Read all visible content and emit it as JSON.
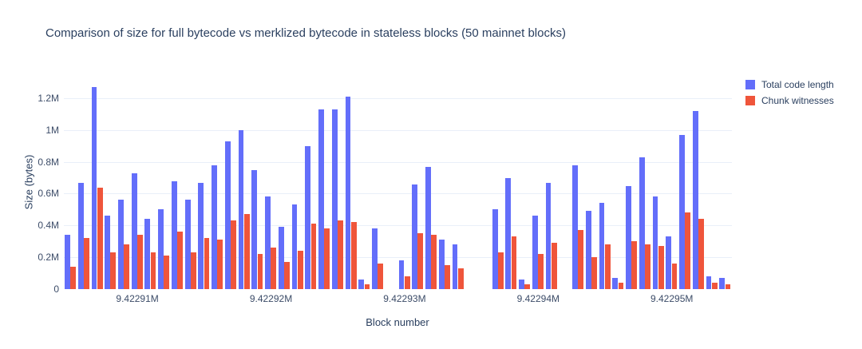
{
  "title": "Comparison of size for full bytecode vs merklized bytecode in stateless blocks (50 mainnet blocks)",
  "colors": {
    "series_blue": "#636EFA",
    "series_red": "#EF553B",
    "text": "#2a3f5f",
    "tick_text": "#3c4c68",
    "gridline": "#e9eff9",
    "background": "#ffffff"
  },
  "legend": {
    "items": [
      {
        "label": "Total code length",
        "color": "#636EFA"
      },
      {
        "label": "Chunk witnesses",
        "color": "#EF553B"
      }
    ]
  },
  "chart_data": {
    "type": "bar",
    "title": "Comparison of size for full bytecode vs merklized bytecode in stateless blocks (50 mainnet blocks)",
    "xlabel": "Block number",
    "ylabel": "Size (bytes)",
    "grid": true,
    "legend_position": "top-right",
    "ylim_millions": [
      0,
      1.34
    ],
    "y_ticks": [
      "0",
      "0.2M",
      "0.4M",
      "0.6M",
      "0.8M",
      "1M",
      "1.2M"
    ],
    "y_tick_values_millions": [
      0,
      0.2,
      0.4,
      0.6,
      0.8,
      1,
      1.2
    ],
    "x_ticks": [
      {
        "label": "9.42291M",
        "index": 5
      },
      {
        "label": "9.42292M",
        "index": 15
      },
      {
        "label": "9.42293M",
        "index": 25
      },
      {
        "label": "9.42294M",
        "index": 35
      },
      {
        "label": "9.42295M",
        "index": 45
      }
    ],
    "x": [
      9422905,
      9422906,
      9422907,
      9422908,
      9422909,
      9422910,
      9422911,
      9422912,
      9422913,
      9422914,
      9422915,
      9422916,
      9422917,
      9422918,
      9422919,
      9422920,
      9422921,
      9422922,
      9422923,
      9422924,
      9422925,
      9422926,
      9422927,
      9422928,
      9422929,
      9422930,
      9422931,
      9422932,
      9422933,
      9422934,
      9422935,
      9422936,
      9422937,
      9422938,
      9422939,
      9422940,
      9422941,
      9422942,
      9422943,
      9422944,
      9422945,
      9422946,
      9422947,
      9422948,
      9422949,
      9422950,
      9422951,
      9422952,
      9422953,
      9422954
    ],
    "series": [
      {
        "name": "Total code length",
        "color": "#636EFA",
        "values_millions": [
          0.34,
          0.67,
          1.27,
          0.46,
          0.56,
          0.73,
          0.44,
          0.5,
          0.68,
          0.56,
          0.67,
          0.78,
          0.93,
          1.0,
          0.75,
          0.58,
          0.39,
          0.53,
          0.9,
          1.13,
          1.13,
          1.21,
          0.06,
          0.38,
          null,
          0.18,
          0.66,
          0.77,
          0.31,
          0.28,
          null,
          null,
          0.5,
          0.7,
          0.06,
          0.46,
          0.67,
          null,
          0.78,
          0.49,
          0.54,
          0.07,
          0.65,
          0.83,
          0.58,
          0.33,
          0.97,
          1.12,
          0.08,
          0.07
        ]
      },
      {
        "name": "Chunk witnesses",
        "color": "#EF553B",
        "values_millions": [
          0.14,
          0.32,
          0.64,
          0.23,
          0.28,
          0.34,
          0.23,
          0.21,
          0.36,
          0.23,
          0.32,
          0.31,
          0.43,
          0.47,
          0.22,
          0.26,
          0.17,
          0.24,
          0.41,
          0.38,
          0.43,
          0.42,
          0.03,
          0.16,
          null,
          0.08,
          0.35,
          0.34,
          0.15,
          0.13,
          null,
          null,
          0.23,
          0.33,
          0.03,
          0.22,
          0.29,
          null,
          0.37,
          0.2,
          0.28,
          0.04,
          0.3,
          0.28,
          0.27,
          0.16,
          0.48,
          0.44,
          0.04,
          0.03
        ]
      }
    ]
  }
}
